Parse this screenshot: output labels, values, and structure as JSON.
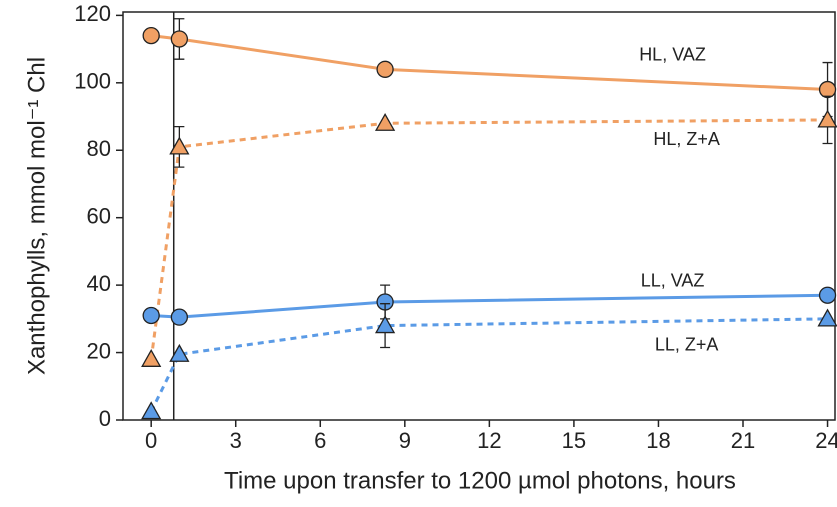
{
  "chart_data": {
    "type": "line",
    "xlabel": "Time upon transfer to 1200 µmol photons, hours",
    "ylabel": "Xanthophylls, mmol mol⁻¹ Chl",
    "xlim": [
      -1,
      24.3
    ],
    "ylim": [
      0,
      121
    ],
    "xticks": [
      0,
      3,
      6,
      9,
      12,
      15,
      18,
      21,
      24
    ],
    "yticks": [
      0,
      20,
      40,
      60,
      80,
      100,
      120
    ],
    "vline_x": 0.8,
    "series": [
      {
        "name": "HL, VAZ",
        "color": "#f0a064",
        "marker": "circle",
        "dashed": false,
        "x": [
          0,
          1,
          8.3,
          24
        ],
        "values": [
          114,
          113,
          104,
          98
        ],
        "errors": [
          null,
          6,
          null,
          8
        ]
      },
      {
        "name": "HL, Z+A",
        "color": "#f0a064",
        "marker": "triangle",
        "dashed": true,
        "x": [
          0,
          1,
          8.3,
          24
        ],
        "values": [
          18,
          81,
          88,
          89
        ],
        "errors": [
          null,
          6,
          null,
          7
        ]
      },
      {
        "name": "LL, VAZ",
        "color": "#5b9be6",
        "marker": "circle",
        "dashed": false,
        "x": [
          0,
          1,
          8.3,
          24
        ],
        "values": [
          31,
          30.5,
          35,
          37
        ],
        "errors": [
          null,
          null,
          5,
          null
        ]
      },
      {
        "name": "LL, Z+A",
        "color": "#5b9be6",
        "marker": "triangle",
        "dashed": true,
        "x": [
          0,
          1,
          8.3,
          24
        ],
        "values": [
          2.5,
          19.5,
          28,
          30
        ],
        "errors": [
          null,
          null,
          6.5,
          null
        ]
      }
    ]
  }
}
